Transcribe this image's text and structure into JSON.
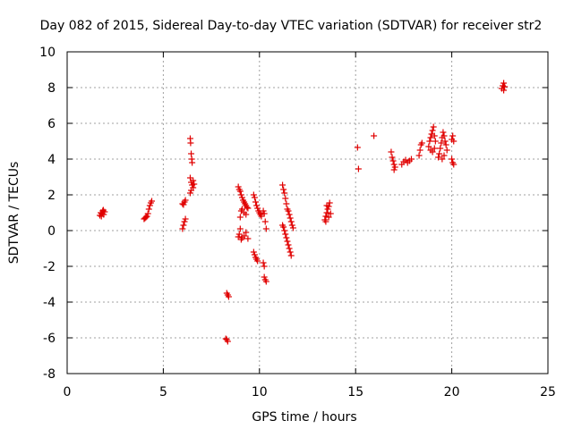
{
  "chart_data": {
    "type": "scatter",
    "title": "Day 082 of 2015, Sidereal Day-to-day VTEC variation (SDTVAR) for receiver str2",
    "xlabel": "GPS time / hours",
    "ylabel": "SDTVAR / TECUs",
    "xlim": [
      0,
      25
    ],
    "ylim": [
      -8,
      10
    ],
    "xticks": [
      0,
      5,
      10,
      15,
      20,
      25
    ],
    "yticks": [
      -8,
      -6,
      -4,
      -2,
      0,
      2,
      4,
      6,
      8,
      10
    ],
    "xtick_labels": [
      "0",
      "5",
      "10",
      "15",
      "20",
      "25"
    ],
    "ytick_labels": [
      "-8",
      "-6",
      "-4",
      "-2",
      "0",
      "2",
      "4",
      "6",
      "8",
      "10"
    ],
    "grid": true,
    "marker": "+",
    "color": "#e00000",
    "series": [
      {
        "name": "SDTVAR",
        "points": [
          [
            1.7,
            0.85
          ],
          [
            1.75,
            1.0
          ],
          [
            1.8,
            0.95
          ],
          [
            1.85,
            1.1
          ],
          [
            1.9,
            0.9
          ],
          [
            1.95,
            1.05
          ],
          [
            1.78,
            0.8
          ],
          [
            1.88,
            1.15
          ],
          [
            4.0,
            0.65
          ],
          [
            4.1,
            0.75
          ],
          [
            4.15,
            0.8
          ],
          [
            4.2,
            0.95
          ],
          [
            4.25,
            1.2
          ],
          [
            4.3,
            1.4
          ],
          [
            4.35,
            1.55
          ],
          [
            4.4,
            1.65
          ],
          [
            4.05,
            0.7
          ],
          [
            6.0,
            0.1
          ],
          [
            6.05,
            0.3
          ],
          [
            6.1,
            0.5
          ],
          [
            6.15,
            0.65
          ],
          [
            6.05,
            1.45
          ],
          [
            6.1,
            1.6
          ],
          [
            6.15,
            1.7
          ],
          [
            6.0,
            1.5
          ],
          [
            6.4,
            5.15
          ],
          [
            6.42,
            4.9
          ],
          [
            6.45,
            4.3
          ],
          [
            6.48,
            4.0
          ],
          [
            6.5,
            3.8
          ],
          [
            6.4,
            2.95
          ],
          [
            6.45,
            2.7
          ],
          [
            6.5,
            2.55
          ],
          [
            6.55,
            2.4
          ],
          [
            6.45,
            2.25
          ],
          [
            6.55,
            2.8
          ],
          [
            6.6,
            2.6
          ],
          [
            6.4,
            2.1
          ],
          [
            8.3,
            -3.5
          ],
          [
            8.35,
            -3.6
          ],
          [
            8.4,
            -3.7
          ],
          [
            8.3,
            -6.1
          ],
          [
            8.35,
            -6.2
          ],
          [
            8.25,
            -6.05
          ],
          [
            8.9,
            2.45
          ],
          [
            8.95,
            2.3
          ],
          [
            9.0,
            2.2
          ],
          [
            9.05,
            2.0
          ],
          [
            9.1,
            1.85
          ],
          [
            9.15,
            1.7
          ],
          [
            9.2,
            1.6
          ],
          [
            9.25,
            1.5
          ],
          [
            9.3,
            1.4
          ],
          [
            9.35,
            1.3
          ],
          [
            9.4,
            1.25
          ],
          [
            9.1,
            1.2
          ],
          [
            9.2,
            1.0
          ],
          [
            9.3,
            0.9
          ],
          [
            9.0,
            0.75
          ],
          [
            9.05,
            1.1
          ],
          [
            8.9,
            -0.35
          ],
          [
            8.95,
            -0.2
          ],
          [
            9.0,
            0.1
          ],
          [
            9.05,
            -0.5
          ],
          [
            9.1,
            -0.4
          ],
          [
            9.2,
            -0.3
          ],
          [
            9.3,
            -0.1
          ],
          [
            9.4,
            -0.45
          ],
          [
            9.7,
            2.0
          ],
          [
            9.75,
            1.85
          ],
          [
            9.8,
            1.6
          ],
          [
            9.85,
            1.4
          ],
          [
            9.9,
            1.25
          ],
          [
            9.95,
            1.1
          ],
          [
            10.0,
            1.0
          ],
          [
            10.05,
            0.9
          ],
          [
            10.1,
            0.8
          ],
          [
            10.2,
            1.1
          ],
          [
            10.25,
            0.95
          ],
          [
            10.3,
            0.5
          ],
          [
            10.35,
            0.1
          ],
          [
            9.7,
            -1.2
          ],
          [
            9.75,
            -1.35
          ],
          [
            9.8,
            -1.5
          ],
          [
            9.85,
            -1.6
          ],
          [
            9.9,
            -1.7
          ],
          [
            10.2,
            -1.8
          ],
          [
            10.25,
            -2.0
          ],
          [
            10.25,
            -2.6
          ],
          [
            10.3,
            -2.75
          ],
          [
            10.35,
            -2.85
          ],
          [
            11.2,
            2.55
          ],
          [
            11.25,
            2.3
          ],
          [
            11.3,
            2.1
          ],
          [
            11.35,
            1.8
          ],
          [
            11.4,
            1.5
          ],
          [
            11.45,
            1.2
          ],
          [
            11.5,
            1.1
          ],
          [
            11.55,
            0.9
          ],
          [
            11.6,
            0.7
          ],
          [
            11.65,
            0.5
          ],
          [
            11.7,
            0.3
          ],
          [
            11.75,
            0.15
          ],
          [
            11.2,
            0.3
          ],
          [
            11.25,
            0.2
          ],
          [
            11.3,
            0.0
          ],
          [
            11.35,
            -0.2
          ],
          [
            11.4,
            -0.4
          ],
          [
            11.45,
            -0.6
          ],
          [
            11.5,
            -0.8
          ],
          [
            11.55,
            -1.0
          ],
          [
            11.6,
            -1.2
          ],
          [
            11.65,
            -1.4
          ],
          [
            13.4,
            0.6
          ],
          [
            13.45,
            0.8
          ],
          [
            13.5,
            1.0
          ],
          [
            13.55,
            1.2
          ],
          [
            13.6,
            1.35
          ],
          [
            13.65,
            1.55
          ],
          [
            13.45,
            0.5
          ],
          [
            13.6,
            0.75
          ],
          [
            13.7,
            0.95
          ],
          [
            13.5,
            1.4
          ],
          [
            15.1,
            4.65
          ],
          [
            15.15,
            3.45
          ],
          [
            15.95,
            5.3
          ],
          [
            16.85,
            4.4
          ],
          [
            16.9,
            4.1
          ],
          [
            16.95,
            3.9
          ],
          [
            17.0,
            3.7
          ],
          [
            17.05,
            3.55
          ],
          [
            17.0,
            3.4
          ],
          [
            17.4,
            3.7
          ],
          [
            17.5,
            3.85
          ],
          [
            17.6,
            3.95
          ],
          [
            17.7,
            3.8
          ],
          [
            17.8,
            3.9
          ],
          [
            17.9,
            4.0
          ],
          [
            18.3,
            4.2
          ],
          [
            18.35,
            4.5
          ],
          [
            18.4,
            4.8
          ],
          [
            18.45,
            4.9
          ],
          [
            18.8,
            4.7
          ],
          [
            18.85,
            5.0
          ],
          [
            18.9,
            5.2
          ],
          [
            18.95,
            5.4
          ],
          [
            19.0,
            5.6
          ],
          [
            19.05,
            5.8
          ],
          [
            19.1,
            5.3
          ],
          [
            19.15,
            5.0
          ],
          [
            18.9,
            4.5
          ],
          [
            19.0,
            4.4
          ],
          [
            19.1,
            4.6
          ],
          [
            19.3,
            4.1
          ],
          [
            19.35,
            4.3
          ],
          [
            19.4,
            4.6
          ],
          [
            19.45,
            4.9
          ],
          [
            19.5,
            5.2
          ],
          [
            19.55,
            5.5
          ],
          [
            19.6,
            5.3
          ],
          [
            19.65,
            5.0
          ],
          [
            19.7,
            4.8
          ],
          [
            19.75,
            4.5
          ],
          [
            19.5,
            4.0
          ],
          [
            19.6,
            4.2
          ],
          [
            20.0,
            5.1
          ],
          [
            20.05,
            5.3
          ],
          [
            20.1,
            5.0
          ],
          [
            20.0,
            4.0
          ],
          [
            20.05,
            3.8
          ],
          [
            20.1,
            3.7
          ],
          [
            22.6,
            7.95
          ],
          [
            22.65,
            8.1
          ],
          [
            22.7,
            8.25
          ],
          [
            22.75,
            8.05
          ],
          [
            22.7,
            7.85
          ]
        ]
      }
    ]
  }
}
